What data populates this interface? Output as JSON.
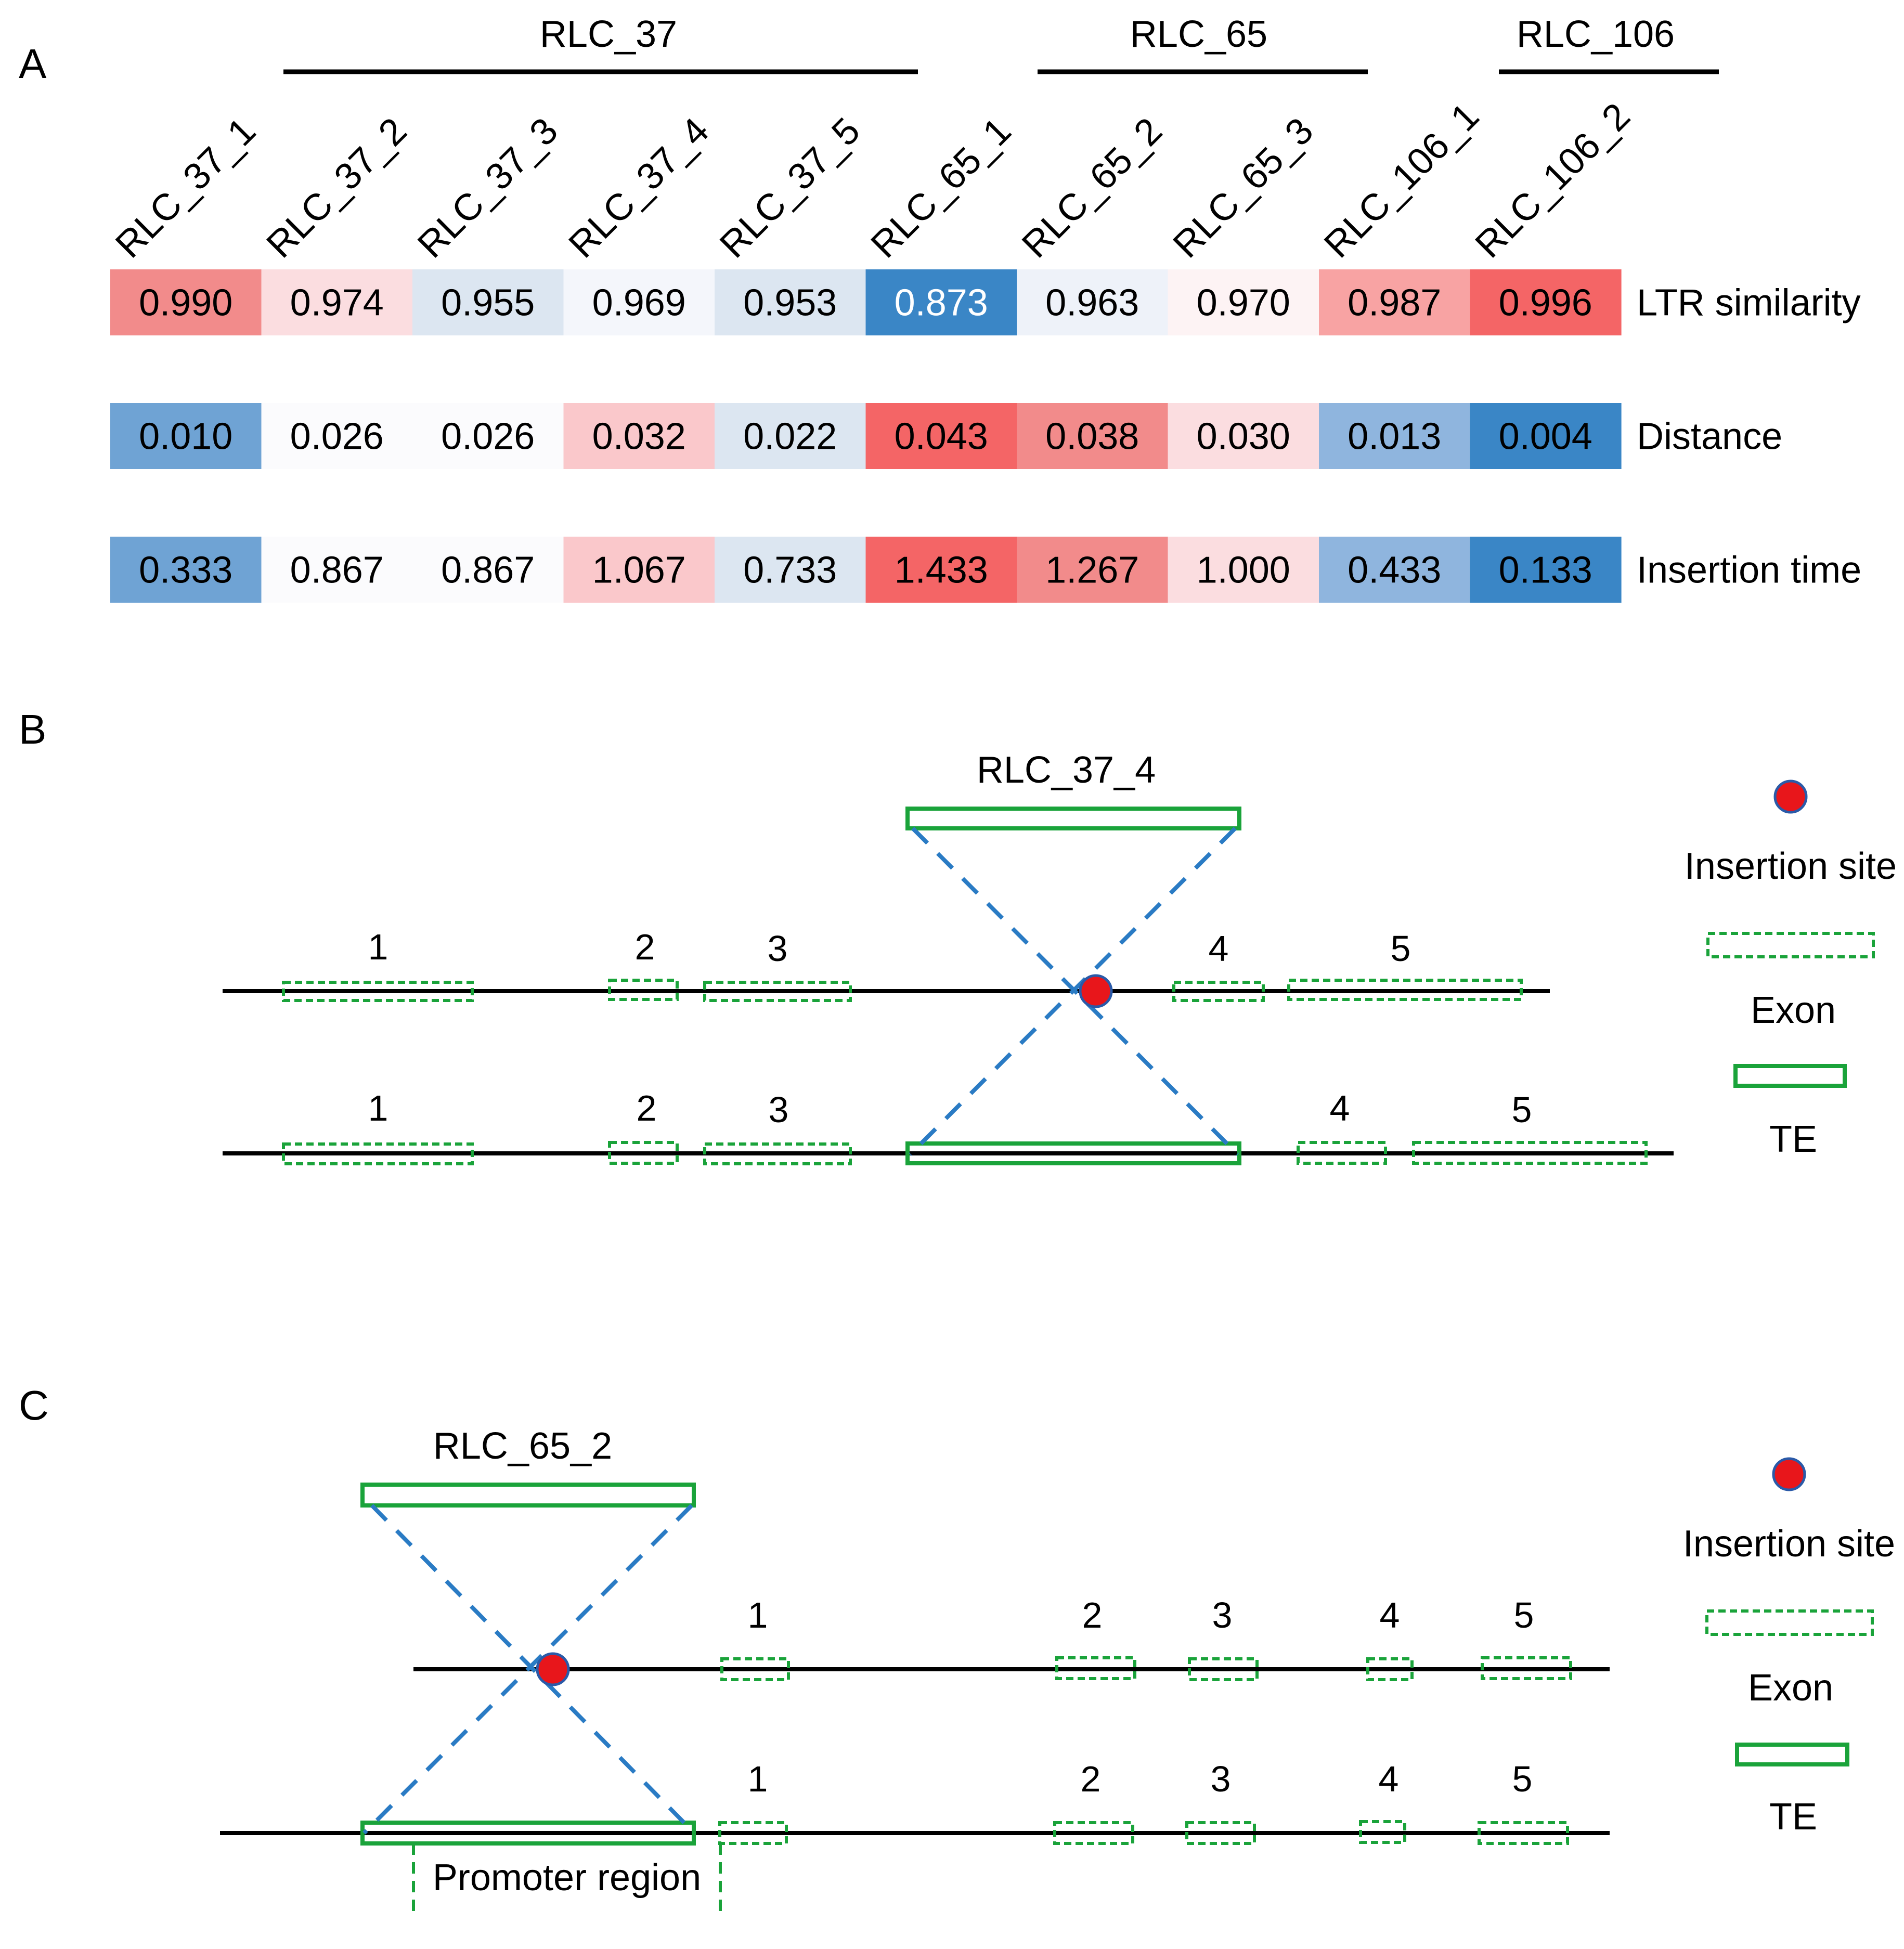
{
  "panels": [
    "A",
    "B",
    "C"
  ],
  "heatmap": {
    "groups": [
      "RLC_37",
      "RLC_65",
      "RLC_106"
    ],
    "columns": [
      "RLC_37_1",
      "RLC_37_2",
      "RLC_37_3",
      "RLC_37_4",
      "RLC_37_5",
      "RLC_65_1",
      "RLC_65_2",
      "RLC_65_3",
      "RLC_106_1",
      "RLC_106_2"
    ],
    "rows": [
      {
        "label": "LTR similarity",
        "values": [
          "0.990",
          "0.974",
          "0.955",
          "0.969",
          "0.953",
          "0.873",
          "0.963",
          "0.970",
          "0.987",
          "0.996"
        ],
        "colors": [
          "#f28b8b",
          "#fbdde0",
          "#dce6f1",
          "#f4f6fb",
          "#dce6f1",
          "#3a86c6",
          "#eef2f9",
          "#fdf3f4",
          "#f8a3a3",
          "#f46566"
        ],
        "text_colors": [
          "#000000",
          "#000000",
          "#000000",
          "#000000",
          "#000000",
          "#ffffff",
          "#000000",
          "#000000",
          "#000000",
          "#000000"
        ]
      },
      {
        "label": "Distance",
        "values": [
          "0.010",
          "0.026",
          "0.026",
          "0.032",
          "0.022",
          "0.043",
          "0.038",
          "0.030",
          "0.013",
          "0.004"
        ],
        "colors": [
          "#6fa3d4",
          "#fbfbfd",
          "#fbfbfd",
          "#fac8cb",
          "#dce6f1",
          "#f46566",
          "#f28b8b",
          "#fbdde0",
          "#8fb5de",
          "#3a86c6"
        ],
        "text_colors": [
          "#000000",
          "#000000",
          "#000000",
          "#000000",
          "#000000",
          "#000000",
          "#000000",
          "#000000",
          "#000000",
          "#000000"
        ]
      },
      {
        "label": "Insertion time",
        "values": [
          "0.333",
          "0.867",
          "0.867",
          "1.067",
          "0.733",
          "1.433",
          "1.267",
          "1.000",
          "0.433",
          "0.133"
        ],
        "colors": [
          "#6fa3d4",
          "#fbfbfd",
          "#fbfbfd",
          "#fac8cb",
          "#dce6f1",
          "#f46566",
          "#f28b8b",
          "#fbdde0",
          "#8fb5de",
          "#3a86c6"
        ],
        "text_colors": [
          "#000000",
          "#000000",
          "#000000",
          "#000000",
          "#000000",
          "#000000",
          "#000000",
          "#000000",
          "#000000",
          "#000000"
        ]
      }
    ]
  },
  "panel_b": {
    "te_label": "RLC_37_4",
    "exon_numbers_top": [
      "1",
      "2",
      "3",
      "4",
      "5"
    ],
    "exon_numbers_bottom": [
      "1",
      "2",
      "3",
      "4",
      "5"
    ]
  },
  "panel_c": {
    "te_label": "RLC_65_2",
    "exon_numbers_top": [
      "1",
      "2",
      "3",
      "4",
      "5"
    ],
    "exon_numbers_bottom": [
      "1",
      "2",
      "3",
      "4",
      "5"
    ],
    "promoter_label": "Promoter region"
  },
  "legend": {
    "insertion_site": "Insertion site",
    "exon": "Exon",
    "te": "TE"
  },
  "colors": {
    "exon_green": "#1aa33a",
    "te_green": "#1aa33a",
    "dash_blue": "#2a7bc4",
    "dot_red": "#e8161b",
    "dot_stroke": "#2a5aa8"
  }
}
